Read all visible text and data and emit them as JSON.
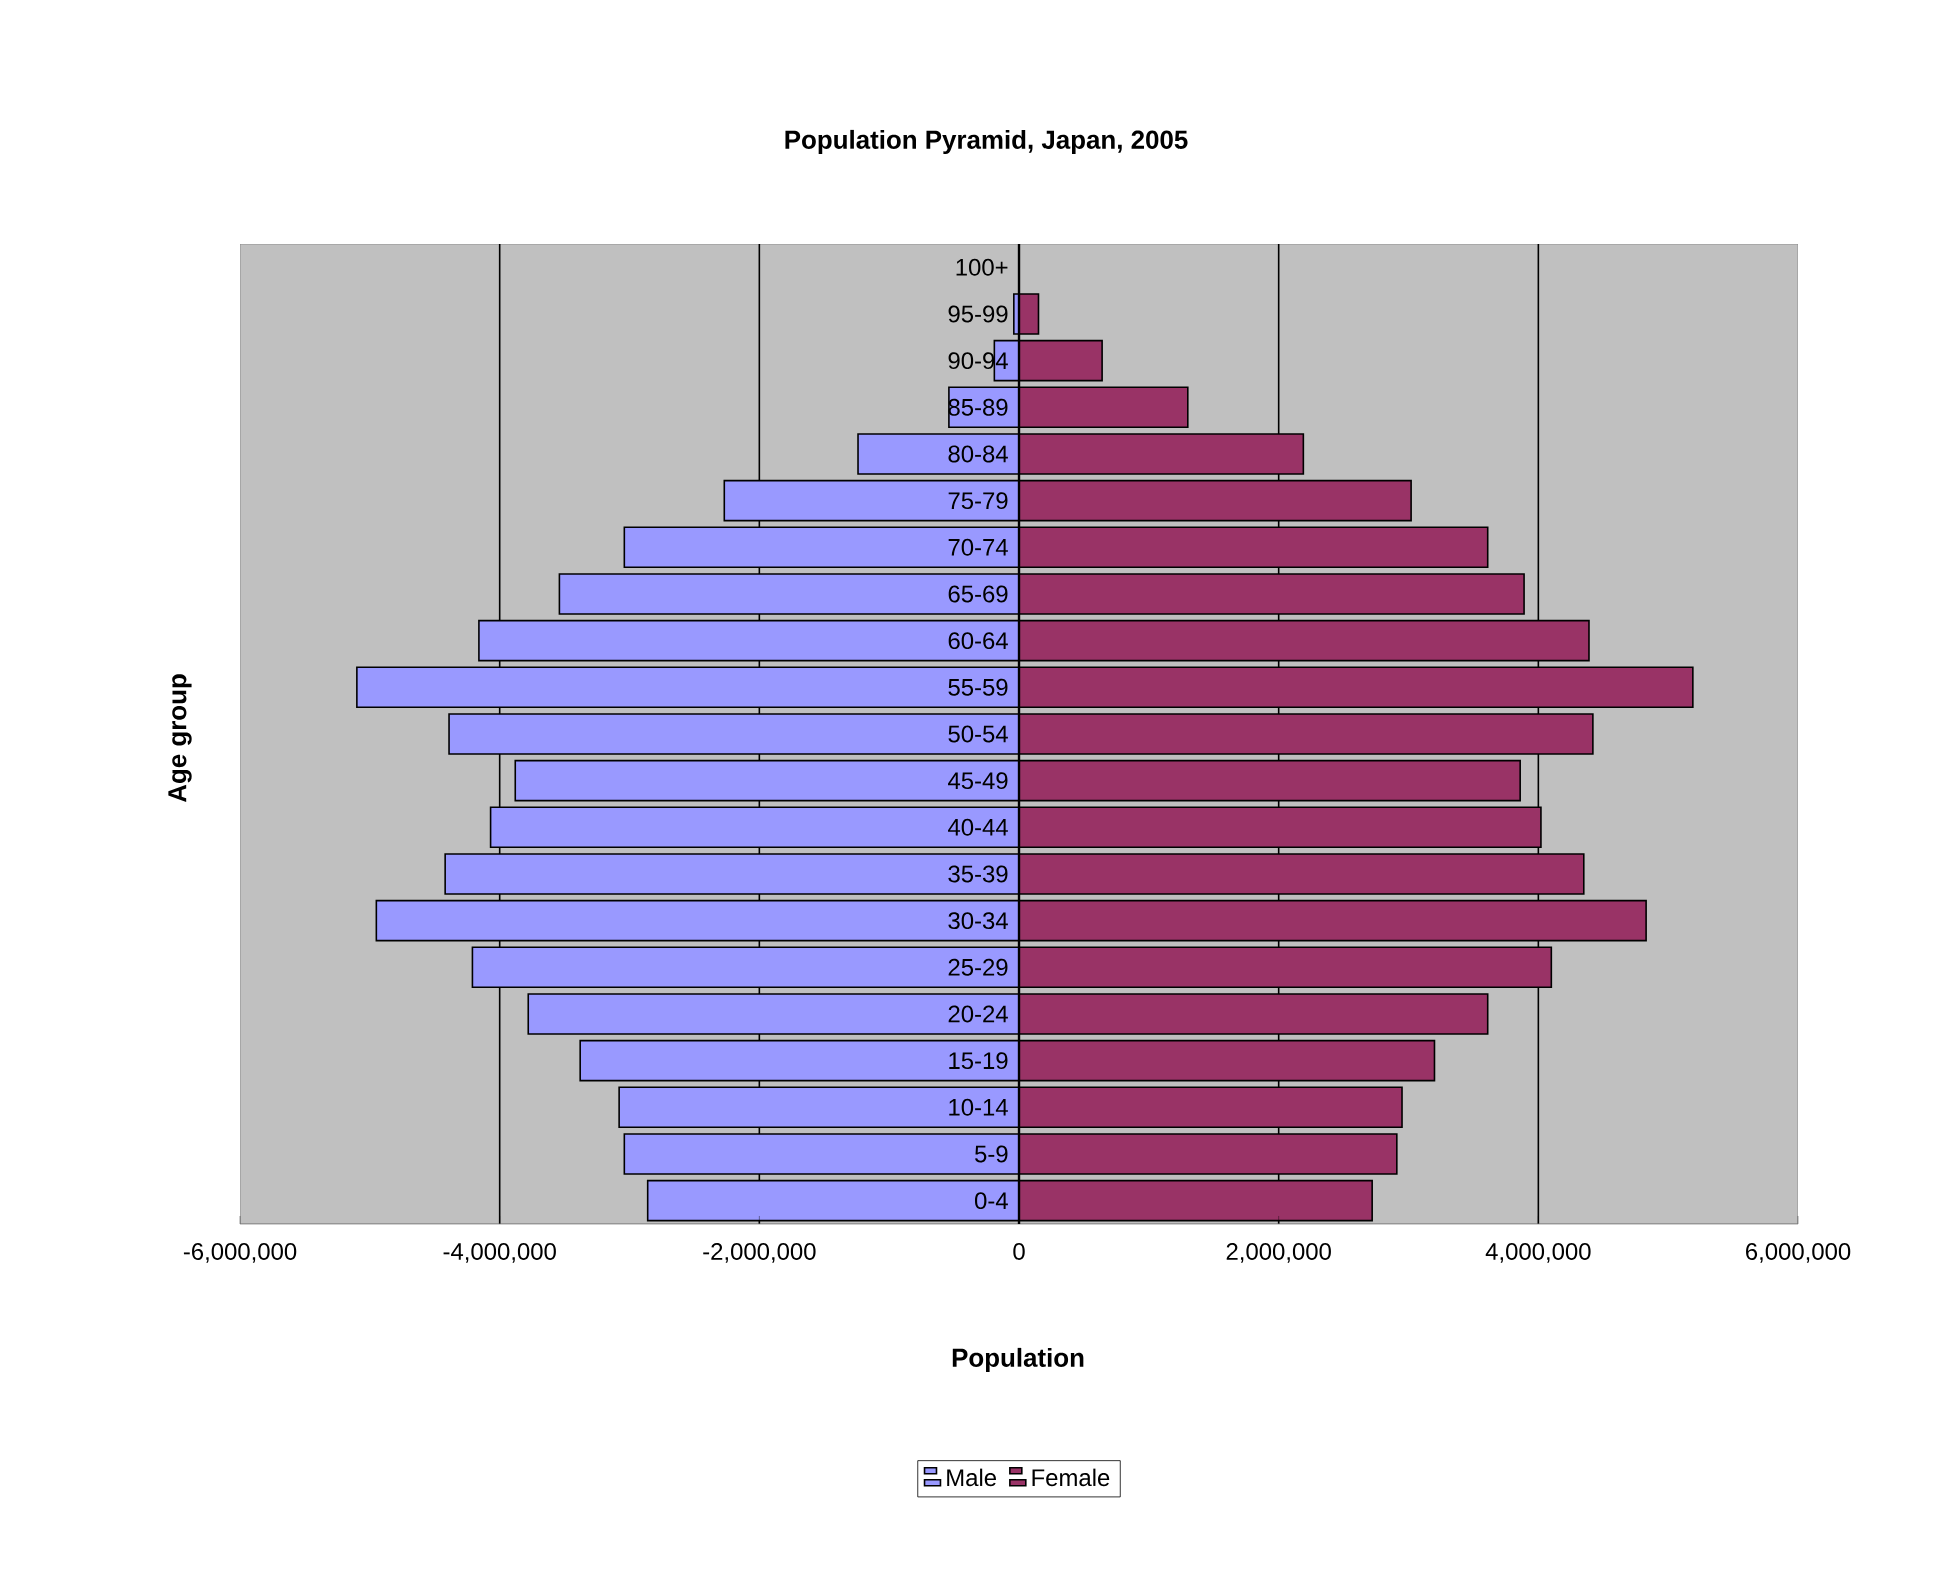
{
  "chart_data": {
    "type": "bar",
    "orientation": "horizontal",
    "title": "Population Pyramid, Japan, 2005",
    "xlabel": "Population",
    "ylabel": "Age group",
    "categories": [
      "100+",
      "95-99",
      "90-94",
      "85-89",
      "80-84",
      "75-79",
      "70-74",
      "65-69",
      "60-64",
      "55-59",
      "50-54",
      "45-49",
      "40-44",
      "35-39",
      "30-34",
      "25-29",
      "20-24",
      "15-19",
      "10-14",
      "5-9",
      "0-4"
    ],
    "series": [
      {
        "name": "Male",
        "color": "#9999ff",
        "values": [
          null,
          -40000,
          -190000,
          -540000,
          -1240000,
          -2270000,
          -3040000,
          -3540000,
          -4160000,
          -5100000,
          -4390000,
          -3880000,
          -4070000,
          -4420000,
          -4950000,
          -4210000,
          -3780000,
          -3380000,
          -3080000,
          -3040000,
          -2860000
        ]
      },
      {
        "name": "Female",
        "color": "#993366",
        "values": [
          null,
          150000,
          640000,
          1300000,
          2190000,
          3020000,
          3610000,
          3890000,
          4390000,
          5190000,
          4420000,
          3860000,
          4020000,
          4350000,
          4830000,
          4100000,
          3610000,
          3200000,
          2950000,
          2910000,
          2720000
        ]
      }
    ],
    "xlim": [
      -6000000,
      6000000
    ],
    "xticks": [
      {
        "value": -6000000,
        "label": "-6,000,000"
      },
      {
        "value": -4000000,
        "label": "-4,000,000"
      },
      {
        "value": -2000000,
        "label": "-2,000,000"
      },
      {
        "value": 0,
        "label": "0"
      },
      {
        "value": 2000000,
        "label": "2,000,000"
      },
      {
        "value": 4000000,
        "label": "4,000,000"
      },
      {
        "value": 6000000,
        "label": "6,000,000"
      }
    ],
    "stacked": true,
    "grid": "x",
    "legend": "bottom"
  }
}
